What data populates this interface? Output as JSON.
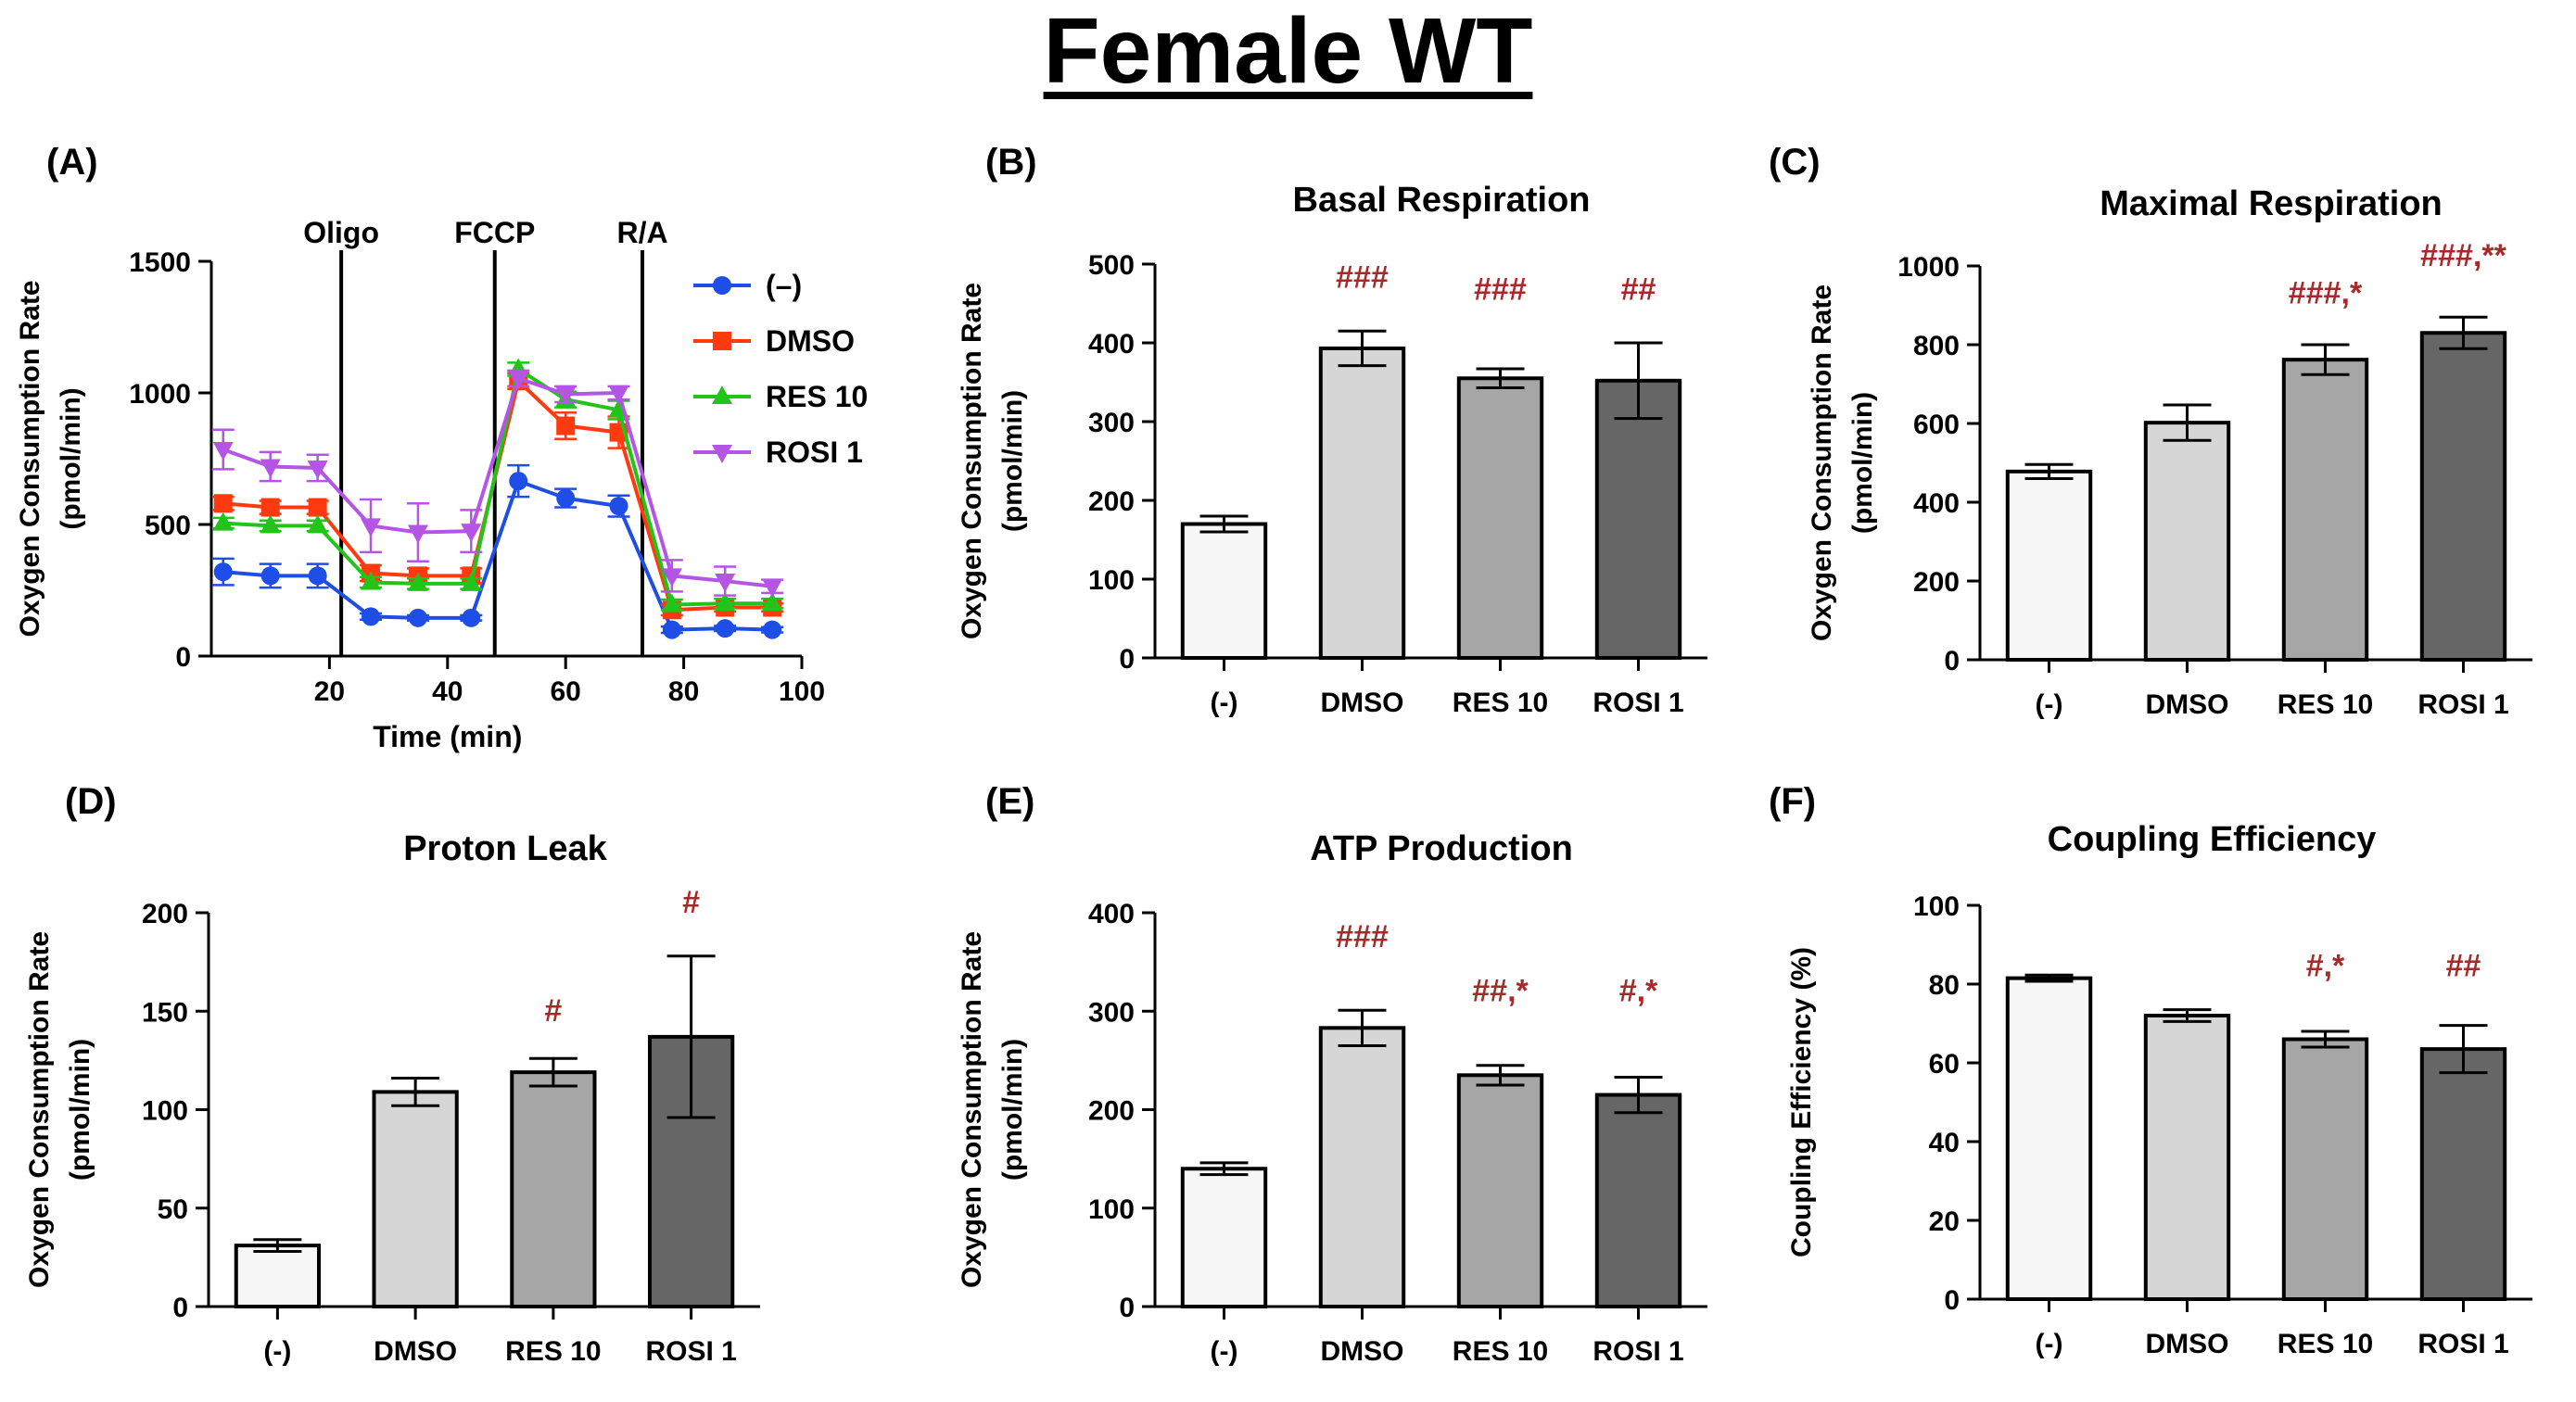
{
  "figure": {
    "title": "Female WT"
  },
  "colors": {
    "bar_fills": [
      "#f7f7f7",
      "#d6d6d6",
      "#a6a6a6",
      "#666666"
    ],
    "annotation": "#a52a2a",
    "series": {
      "(–)": "#1f4ee6",
      "DMSO": "#ff3a0f",
      "RES 10": "#22c41a",
      "ROSI 1": "#b455e6"
    }
  },
  "chart_data": [
    {
      "panel": "(A)",
      "type": "line",
      "title": "",
      "xlabel": "Time (min)",
      "ylabel": [
        "Oxygen Consumption Rate",
        "(pmol/min)"
      ],
      "xlim": [
        0,
        100
      ],
      "ylim": [
        0,
        1500
      ],
      "xticks": [
        20,
        40,
        60,
        80,
        100
      ],
      "yticks": [
        0,
        500,
        1000,
        1500
      ],
      "injections": [
        {
          "label": "Oligo",
          "x": 22
        },
        {
          "label": "FCCP",
          "x": 48
        },
        {
          "label": "R/A",
          "x": 73
        }
      ],
      "x": [
        2,
        10,
        18,
        27,
        35,
        44,
        52,
        60,
        69,
        78,
        87,
        95
      ],
      "series": [
        {
          "name": "(–)",
          "marker": "circle",
          "color": "#1f4ee6",
          "values": [
            320,
            305,
            305,
            150,
            145,
            145,
            665,
            600,
            570,
            100,
            105,
            100
          ],
          "errors": [
            50,
            45,
            45,
            12,
            10,
            10,
            60,
            35,
            40,
            12,
            10,
            10
          ]
        },
        {
          "name": "DMSO",
          "marker": "square",
          "color": "#ff3a0f",
          "values": [
            580,
            565,
            565,
            315,
            305,
            305,
            1045,
            875,
            850,
            175,
            185,
            185
          ],
          "errors": [
            25,
            25,
            25,
            30,
            28,
            28,
            30,
            50,
            60,
            20,
            15,
            15
          ]
        },
        {
          "name": "RES 10",
          "marker": "triangle-up",
          "color": "#22c41a",
          "values": [
            505,
            495,
            495,
            280,
            275,
            275,
            1090,
            975,
            935,
            195,
            200,
            200
          ],
          "errors": [
            20,
            20,
            20,
            20,
            20,
            20,
            25,
            30,
            35,
            20,
            18,
            18
          ]
        },
        {
          "name": "ROSI 1",
          "marker": "triangle-down",
          "color": "#b455e6",
          "values": [
            785,
            720,
            715,
            495,
            470,
            475,
            1055,
            995,
            1000,
            305,
            285,
            265
          ],
          "errors": [
            75,
            55,
            50,
            100,
            110,
            80,
            30,
            30,
            25,
            60,
            55,
            25
          ]
        }
      ]
    },
    {
      "panel": "(B)",
      "type": "bar",
      "title": "Basal Respiration",
      "ylabel": [
        "Oxygen Consumption Rate",
        "(pmol/min)"
      ],
      "categories": [
        "(-)",
        "DMSO",
        "RES 10",
        "ROSI 1"
      ],
      "values": [
        170,
        393,
        355,
        352
      ],
      "errors": [
        10,
        22,
        12,
        48
      ],
      "ylim": [
        0,
        500
      ],
      "yticks": [
        0,
        100,
        200,
        300,
        400,
        500
      ],
      "annotations": [
        "",
        "###",
        "###",
        "##"
      ],
      "annotation_y": [
        0,
        470,
        455,
        455
      ]
    },
    {
      "panel": "(C)",
      "type": "bar",
      "title": "Maximal Respiration",
      "ylabel": [
        "Oxygen Consumption Rate",
        "(pmol/min)"
      ],
      "categories": [
        "(-)",
        "DMSO",
        "RES 10",
        "ROSI 1"
      ],
      "values": [
        478,
        602,
        762,
        830
      ],
      "errors": [
        18,
        45,
        38,
        40
      ],
      "ylim": [
        0,
        1000
      ],
      "yticks": [
        0,
        200,
        400,
        600,
        800,
        1000
      ],
      "annotations": [
        "",
        "",
        "###,*",
        "###,**"
      ],
      "annotation_y": [
        0,
        0,
        905,
        1000
      ]
    },
    {
      "panel": "(D)",
      "type": "bar",
      "title": "Proton Leak",
      "ylabel": [
        "Oxygen Consumption Rate",
        "(pmol/min)"
      ],
      "categories": [
        "(-)",
        "DMSO",
        "RES 10",
        "ROSI 1"
      ],
      "values": [
        31,
        109,
        119,
        137
      ],
      "errors": [
        3,
        7,
        7,
        41
      ],
      "ylim": [
        0,
        200
      ],
      "yticks": [
        0,
        50,
        100,
        150,
        200
      ],
      "annotations": [
        "",
        "",
        "#",
        "#"
      ],
      "annotation_y": [
        0,
        0,
        145,
        200
      ]
    },
    {
      "panel": "(E)",
      "type": "bar",
      "title": "ATP Production",
      "ylabel": [
        "Oxygen Consumption Rate",
        "(pmol/min)"
      ],
      "categories": [
        "(-)",
        "DMSO",
        "RES 10",
        "ROSI 1"
      ],
      "values": [
        140,
        283,
        235,
        215
      ],
      "errors": [
        6,
        18,
        10,
        18
      ],
      "ylim": [
        0,
        400
      ],
      "yticks": [
        0,
        100,
        200,
        300,
        400
      ],
      "annotations": [
        "",
        "###",
        "##,*",
        "#,*"
      ],
      "annotation_y": [
        0,
        365,
        310,
        310
      ]
    },
    {
      "panel": "(F)",
      "type": "bar",
      "title": "Coupling Efficiency",
      "ylabel": [
        "Coupling Efficiency (%)"
      ],
      "categories": [
        "(-)",
        "DMSO",
        "RES 10",
        "ROSI 1"
      ],
      "values": [
        81.5,
        72,
        66,
        63.5
      ],
      "errors": [
        0.8,
        1.5,
        2,
        6
      ],
      "ylim": [
        0,
        100
      ],
      "yticks": [
        0,
        20,
        40,
        60,
        80,
        100
      ],
      "annotations": [
        "",
        "",
        "#,*",
        "##"
      ],
      "annotation_y": [
        0,
        0,
        82,
        82
      ]
    }
  ]
}
